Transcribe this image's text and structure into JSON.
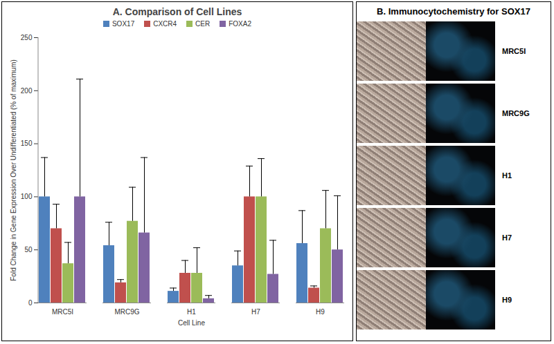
{
  "chart_data": {
    "type": "bar",
    "title": "A. Comparison of Cell Lines",
    "x_label": "Cell Line",
    "y_label": "Fold Change in Gene Expression Over Undifferentiated (% of maximum)",
    "categories": [
      "MRC5I",
      "MRC9G",
      "H1",
      "H7",
      "H9"
    ],
    "series": [
      {
        "name": "SOX17",
        "color": "#4f81bd",
        "values": [
          100,
          54,
          11,
          35,
          56
        ],
        "errors": [
          37,
          22,
          3,
          14,
          31
        ]
      },
      {
        "name": "CXCR4",
        "color": "#c0504d",
        "values": [
          70,
          19,
          28,
          100,
          14
        ],
        "errors": [
          23,
          3,
          12,
          29,
          2
        ]
      },
      {
        "name": "CER",
        "color": "#9bbb59",
        "values": [
          37,
          77,
          28,
          100,
          70
        ],
        "errors": [
          20,
          32,
          24,
          36,
          36
        ]
      },
      {
        "name": "FOXA2",
        "color": "#8064a2",
        "values": [
          100,
          66,
          4,
          27,
          50
        ],
        "errors": [
          111,
          71,
          3,
          32,
          51
        ]
      }
    ],
    "ylim": [
      0,
      250
    ],
    "yticks": [
      0,
      50,
      100,
      150,
      200,
      250
    ],
    "grid": false,
    "legend": "top"
  },
  "image_panel": {
    "title": "B. Immunocytochemistry for SOX17",
    "labels": [
      "MRC5I",
      "MRC9G",
      "H1",
      "H7",
      "H9"
    ]
  }
}
